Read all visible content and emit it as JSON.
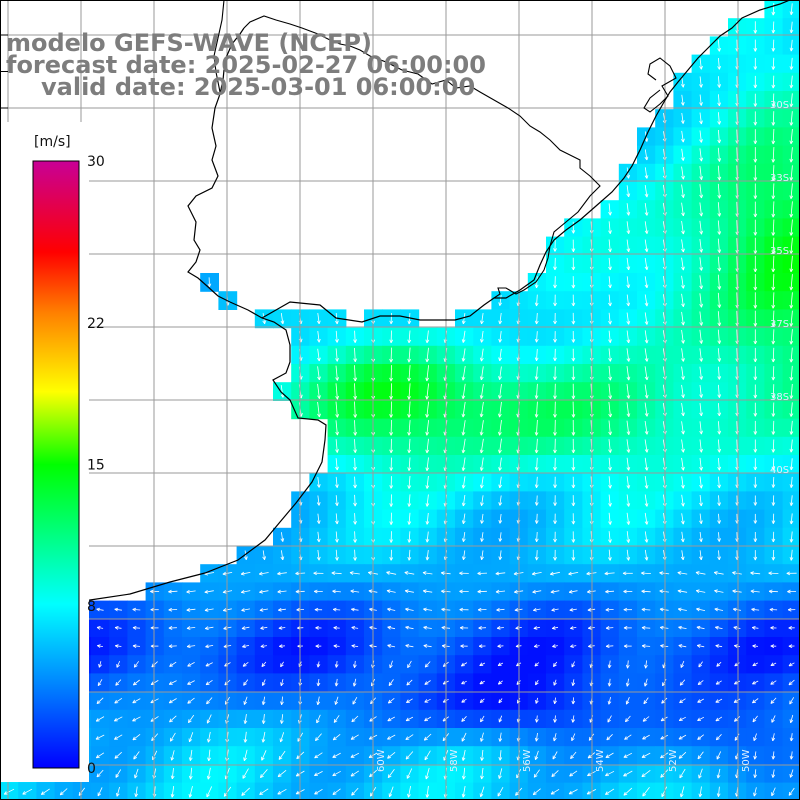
{
  "title": {
    "line1": "modelo GEFS-WAVE (NCEP)",
    "line2": "forecast date: 2025-02-27 06:00:00",
    "line3": "valid date: 2025-03-01 06:00:00"
  },
  "colorbar": {
    "unit": "[m/s]",
    "min": 0,
    "max": 30,
    "tick_labels": [
      "30",
      "22",
      "15",
      "8",
      "0"
    ],
    "tick_values": [
      30,
      22,
      15,
      8,
      0
    ],
    "colors": [
      "#0000ff",
      "#00a8ff",
      "#00ffff",
      "#00ff00",
      "#ffff00",
      "#ff8000",
      "#ff0000",
      "#c80096"
    ]
  },
  "map": {
    "variable": "wind speed and direction",
    "background_color": "#ffffff",
    "grid_color": "#9a9a9a",
    "coastline_color": "#000000",
    "arrow_color": "#ffffff",
    "edge_labels_right": [
      "30S",
      "33S",
      "35S",
      "37S",
      "38S",
      "40S"
    ],
    "edge_labels_bottom": [
      "60W",
      "58W",
      "56W",
      "54W",
      "52W",
      "50W"
    ]
  }
}
